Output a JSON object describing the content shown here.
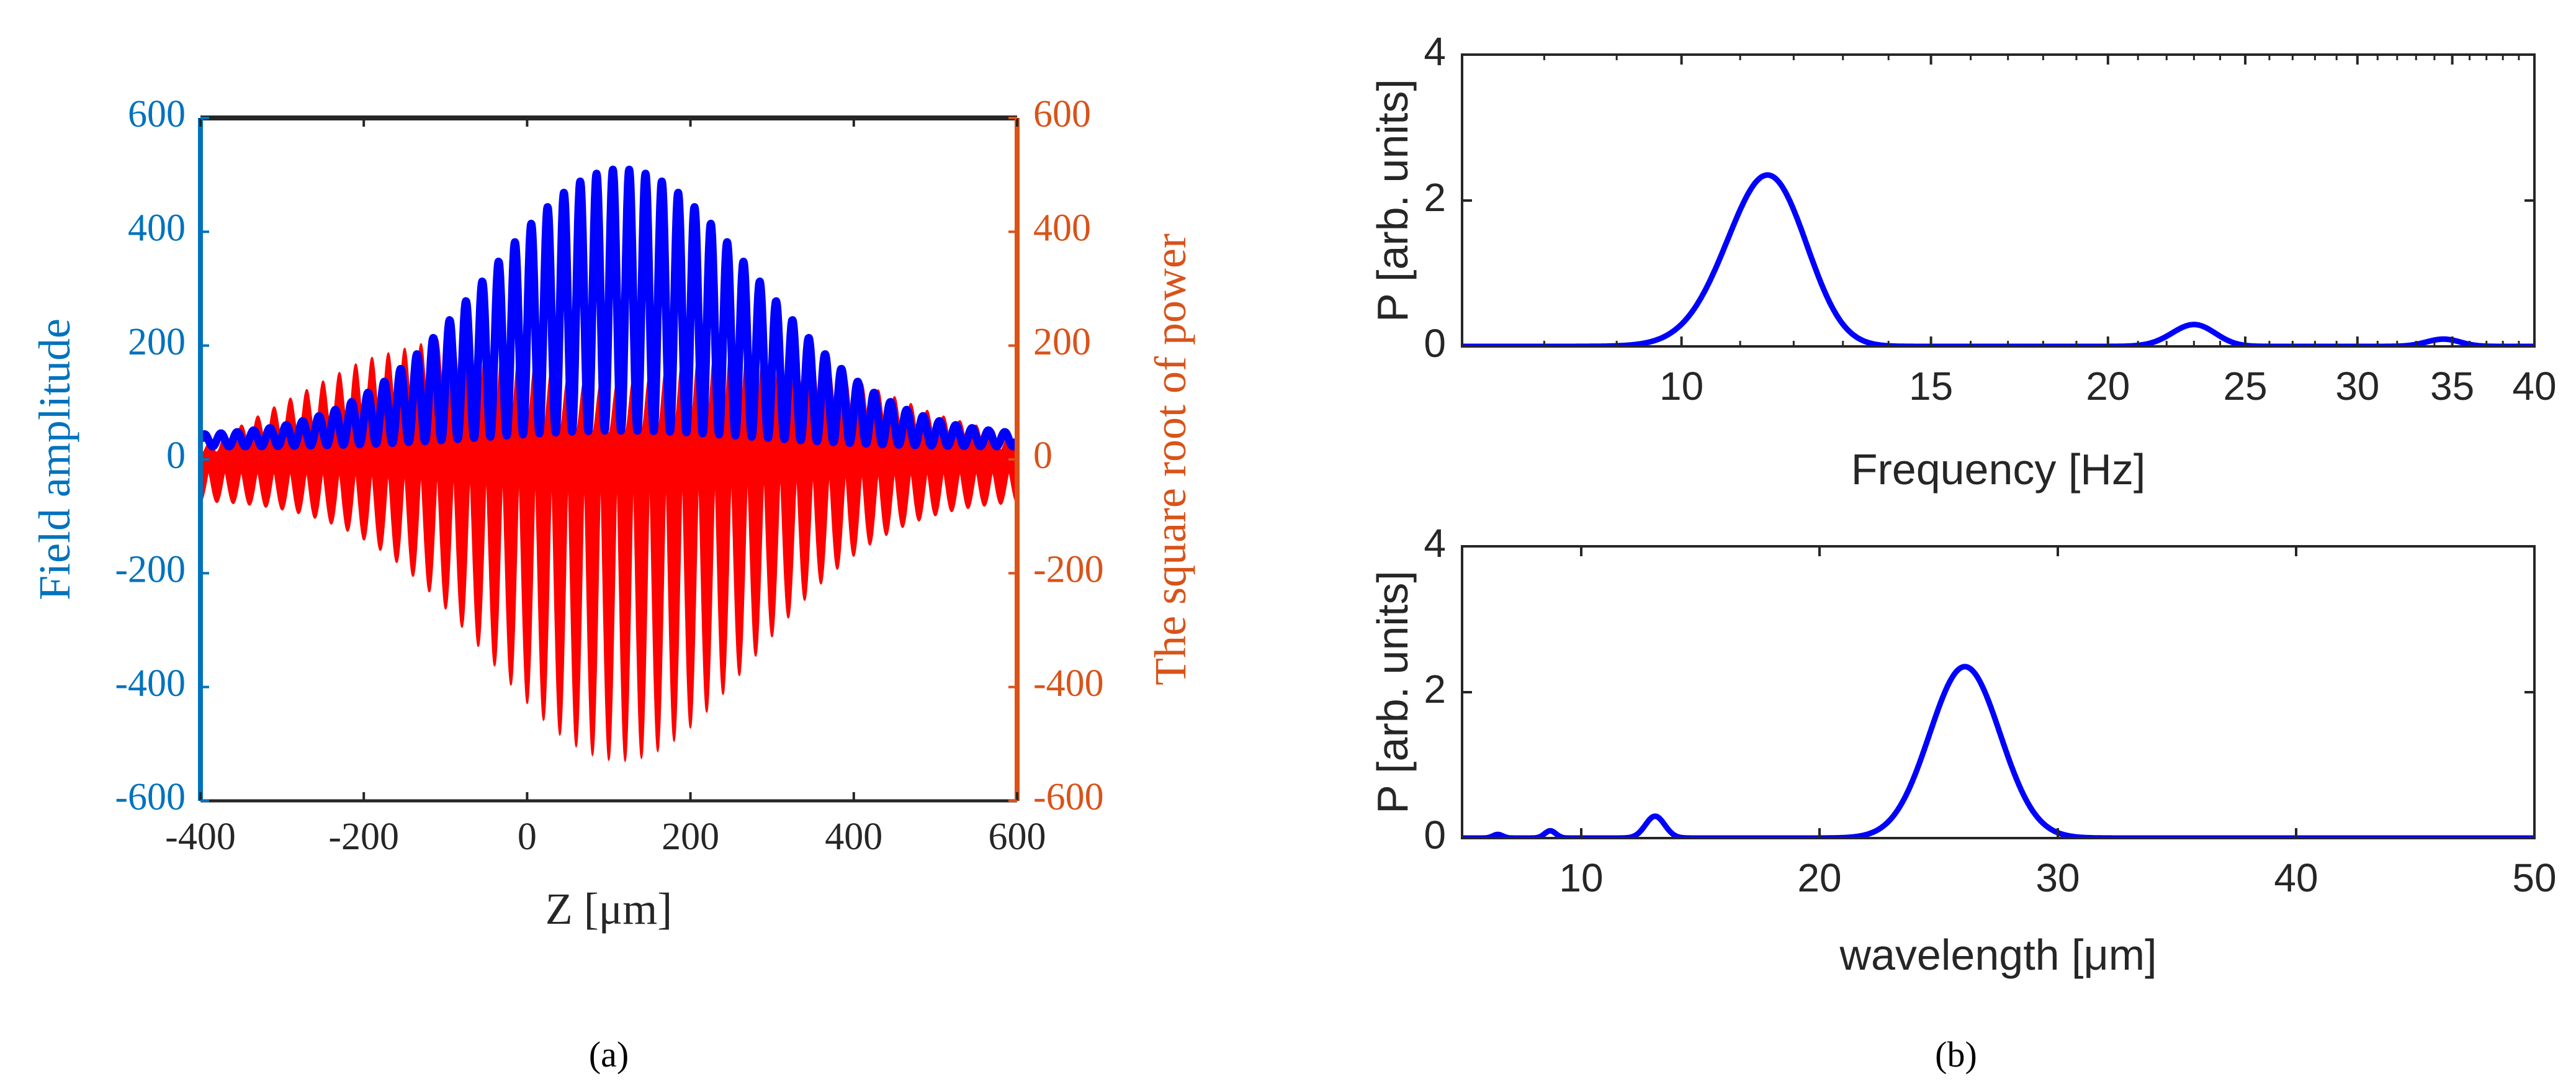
{
  "colors": {
    "left_axis": "#0072BD",
    "right_axis": "#D95319",
    "field_line": "#0000FF",
    "power_fill": "#FF0000",
    "spectrum_line": "#0000FF",
    "frame": "#262626"
  },
  "panel_labels": {
    "a": "(a)",
    "b": "(b)"
  },
  "chart_data": [
    {
      "id": "a",
      "type": "line",
      "xlabel": "Z [μm]",
      "ylabel_left": "Field amplitude",
      "ylabel_right": "The square root of power",
      "xlim": [
        -400,
        600
      ],
      "ylim_left": [
        -600,
        600
      ],
      "ylim_right": [
        -600,
        600
      ],
      "xticks": [
        "-400",
        "-200",
        "0",
        "200",
        "400",
        "600"
      ],
      "yticks_left": [
        "-600",
        "-400",
        "-200",
        "0",
        "200",
        "400",
        "600"
      ],
      "yticks_right": [
        "-600",
        "-400",
        "-200",
        "0",
        "200",
        "400",
        "600"
      ],
      "series": [
        {
          "name": "Field amplitude",
          "axis": "left",
          "style": "oscillating line",
          "envelope_peak_z": 115,
          "envelope_peak": 510,
          "envelope_width": 230,
          "oscillation_period": 20,
          "baseline_offset": 20
        },
        {
          "name": "The square root of power",
          "axis": "right",
          "style": "filled oscillation",
          "upper_envelope": [
            [
              -400,
              20
            ],
            [
              -300,
              100
            ],
            [
              -200,
              175
            ],
            [
              -100,
              215
            ],
            [
              -50,
              210
            ],
            [
              0,
              180
            ],
            [
              50,
              145
            ],
            [
              100,
              130
            ],
            [
              150,
              150
            ],
            [
              200,
              185
            ],
            [
              250,
              210
            ],
            [
              300,
              205
            ],
            [
              350,
              175
            ],
            [
              400,
              140
            ],
            [
              500,
              80
            ],
            [
              600,
              40
            ]
          ],
          "lower_envelope_peak": -510,
          "lower_envelope_peak_z": 115,
          "lower_envelope_width": 230,
          "oscillation_period": 20
        }
      ]
    },
    {
      "id": "b-top",
      "type": "line",
      "xscale": "log",
      "xlabel": "Frequency [Hz]",
      "ylabel": "P [arb. units]",
      "xlim": [
        7,
        40
      ],
      "ylim": [
        0,
        4
      ],
      "xticks": [
        "10",
        "15",
        "20",
        "25",
        "30",
        "35",
        "40"
      ],
      "yticks": [
        "0",
        "2",
        "4"
      ],
      "peaks": [
        {
          "center": 11.5,
          "height": 2.35,
          "width": 1.1
        },
        {
          "center": 23.0,
          "height": 0.3,
          "width": 1.2
        },
        {
          "center": 34.5,
          "height": 0.1,
          "width": 1.4
        }
      ]
    },
    {
      "id": "b-bottom",
      "type": "line",
      "xlabel": "wavelength [μm]",
      "ylabel": "P [arb. units]",
      "xlim": [
        5,
        50
      ],
      "ylim": [
        0,
        4
      ],
      "xticks": [
        "10",
        "20",
        "30",
        "40",
        "50"
      ],
      "yticks": [
        "0",
        "2",
        "4"
      ],
      "peaks": [
        {
          "center": 26.1,
          "height": 2.35,
          "width": 2.2
        },
        {
          "center": 13.1,
          "height": 0.3,
          "width": 0.6
        },
        {
          "center": 8.7,
          "height": 0.1,
          "width": 0.35
        },
        {
          "center": 6.5,
          "height": 0.05,
          "width": 0.3
        }
      ]
    }
  ]
}
